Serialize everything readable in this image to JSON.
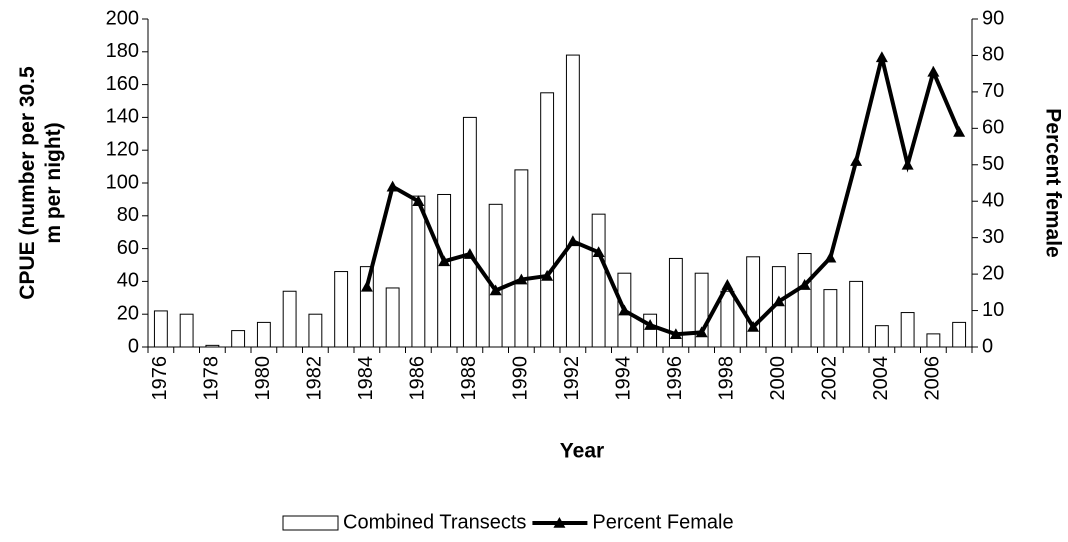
{
  "chart_data": {
    "type": "bar",
    "xlabel": "Year",
    "ylabel": "CPUE (number per 30.5 m per night)",
    "y2label": "Percent female",
    "categories": [
      "1976",
      null,
      "1978",
      null,
      "1980",
      null,
      "1982",
      null,
      "1984",
      null,
      "1986",
      null,
      "1988",
      null,
      "1990",
      null,
      "1992",
      null,
      "1994",
      null,
      "1996",
      null,
      "1998",
      null,
      "2000",
      null,
      "2002",
      null,
      "2004",
      null,
      "2006",
      null
    ],
    "series": [
      {
        "name": "Combined Transects",
        "type": "bar",
        "color": "#ffffff",
        "values": [
          22,
          20,
          1,
          10,
          15,
          34,
          20,
          46,
          49,
          36,
          92,
          93,
          140,
          87,
          108,
          155,
          178,
          81,
          45,
          20,
          54,
          45,
          34,
          55,
          49,
          57,
          35,
          40,
          13,
          21,
          8,
          15
        ]
      },
      {
        "name": "Percent Female",
        "type": "line",
        "axis": "y2",
        "color": "#000000",
        "values": [
          null,
          null,
          null,
          null,
          null,
          null,
          null,
          null,
          16.5,
          44,
          40,
          23.5,
          25.5,
          15.5,
          18.5,
          19.5,
          29,
          26,
          10,
          6,
          3.5,
          4,
          17,
          5.5,
          12.5,
          17,
          24.5,
          51,
          79.5,
          50,
          75.5,
          59
        ]
      }
    ],
    "ylim": [
      0,
      200
    ],
    "yticks": [
      0,
      20,
      40,
      60,
      80,
      100,
      120,
      140,
      160,
      180,
      200
    ],
    "y2lim": [
      0,
      90
    ],
    "y2ticks": [
      0,
      10,
      20,
      30,
      40,
      50,
      60,
      70,
      80,
      90
    ]
  }
}
